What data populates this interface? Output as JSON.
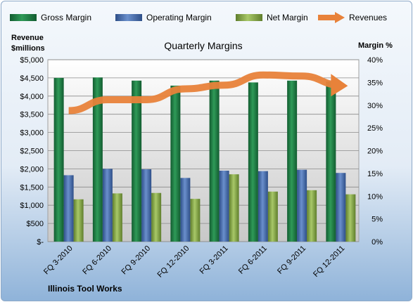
{
  "chart_data": {
    "type": "bar",
    "title": "Quarterly Margins",
    "footer": "Illinois Tool Works",
    "y_left_label_line1": "Revenue",
    "y_left_label_line2": "$millions",
    "y_right_label": "Margin %",
    "categories": [
      "FQ 3-2010",
      "FQ 6-2010",
      "FQ 9-2010",
      "FQ 12-2010",
      "FQ 3-2011",
      "FQ 6-2011",
      "FQ 9-2011",
      "FQ 12-2011"
    ],
    "series": [
      {
        "name": "Gross Margin",
        "axis": "right",
        "unit": "%",
        "type": "bar",
        "color": "#1e7b45",
        "values": [
          36.0,
          36.1,
          35.4,
          34.3,
          35.4,
          35.0,
          35.4,
          35.2
        ]
      },
      {
        "name": "Operating Margin",
        "axis": "right",
        "unit": "%",
        "type": "bar",
        "color": "#4a70b0",
        "values": [
          14.6,
          16.0,
          15.9,
          14.0,
          15.6,
          15.5,
          15.8,
          15.1
        ]
      },
      {
        "name": "Net Margin",
        "axis": "right",
        "unit": "%",
        "type": "bar",
        "color": "#86a845",
        "values": [
          9.3,
          10.6,
          10.7,
          9.4,
          14.8,
          11.0,
          11.3,
          10.4
        ]
      },
      {
        "name": "Revenues",
        "axis": "left",
        "unit": "$millions",
        "type": "line",
        "color": "#e8823a",
        "values": [
          3600,
          3900,
          3900,
          4200,
          4300,
          4580,
          4550,
          4300
        ]
      }
    ],
    "y_left": {
      "min": 0,
      "max": 5000,
      "step": 500,
      "ticks": [
        "$-",
        "$500",
        "$1,000",
        "$1,500",
        "$2,000",
        "$2,500",
        "$3,000",
        "$3,500",
        "$4,000",
        "$4,500",
        "$5,000"
      ]
    },
    "y_right": {
      "min": 0,
      "max": 40,
      "step": 5,
      "ticks": [
        "0%",
        "5%",
        "10%",
        "15%",
        "20%",
        "25%",
        "30%",
        "35%",
        "40%"
      ]
    },
    "grid": true,
    "legend_position": "top"
  }
}
